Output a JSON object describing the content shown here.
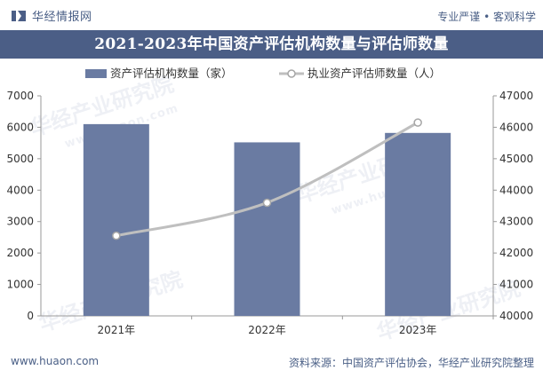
{
  "header": {
    "brand": "华经情报网",
    "slogan": "专业严谨 • 客观科学"
  },
  "footer": {
    "url": "www.huaon.com",
    "source": "资料来源：中国资产评估协会，华经产业研究院整理"
  },
  "watermark": {
    "brand": "华经产业研究院",
    "url": "www.huaon.com"
  },
  "colors": {
    "bar": "#6a7ba2",
    "line": "#bfbfbf",
    "title_bg": "#4b5e86",
    "text": "#4a5f86"
  },
  "chart_data": {
    "type": "bar+line",
    "title": "2021-2023年中国资产评估机构数量与评估师数量",
    "categories": [
      "2021年",
      "2022年",
      "2023年"
    ],
    "series": [
      {
        "name": "资产评估机构数量（家）",
        "type": "bar",
        "axis": "left",
        "values": [
          6100,
          5520,
          5820
        ]
      },
      {
        "name": "执业资产评估师数量（人）",
        "type": "line",
        "axis": "right",
        "values": [
          42550,
          43600,
          46150
        ]
      }
    ],
    "left_axis": {
      "min": 0,
      "max": 7000,
      "ticks": [
        0,
        1000,
        2000,
        3000,
        4000,
        5000,
        6000,
        7000
      ]
    },
    "right_axis": {
      "min": 40000,
      "max": 47000,
      "ticks": [
        40000,
        41000,
        42000,
        43000,
        44000,
        45000,
        46000,
        47000
      ]
    },
    "legend": "top-center",
    "grid": false
  }
}
